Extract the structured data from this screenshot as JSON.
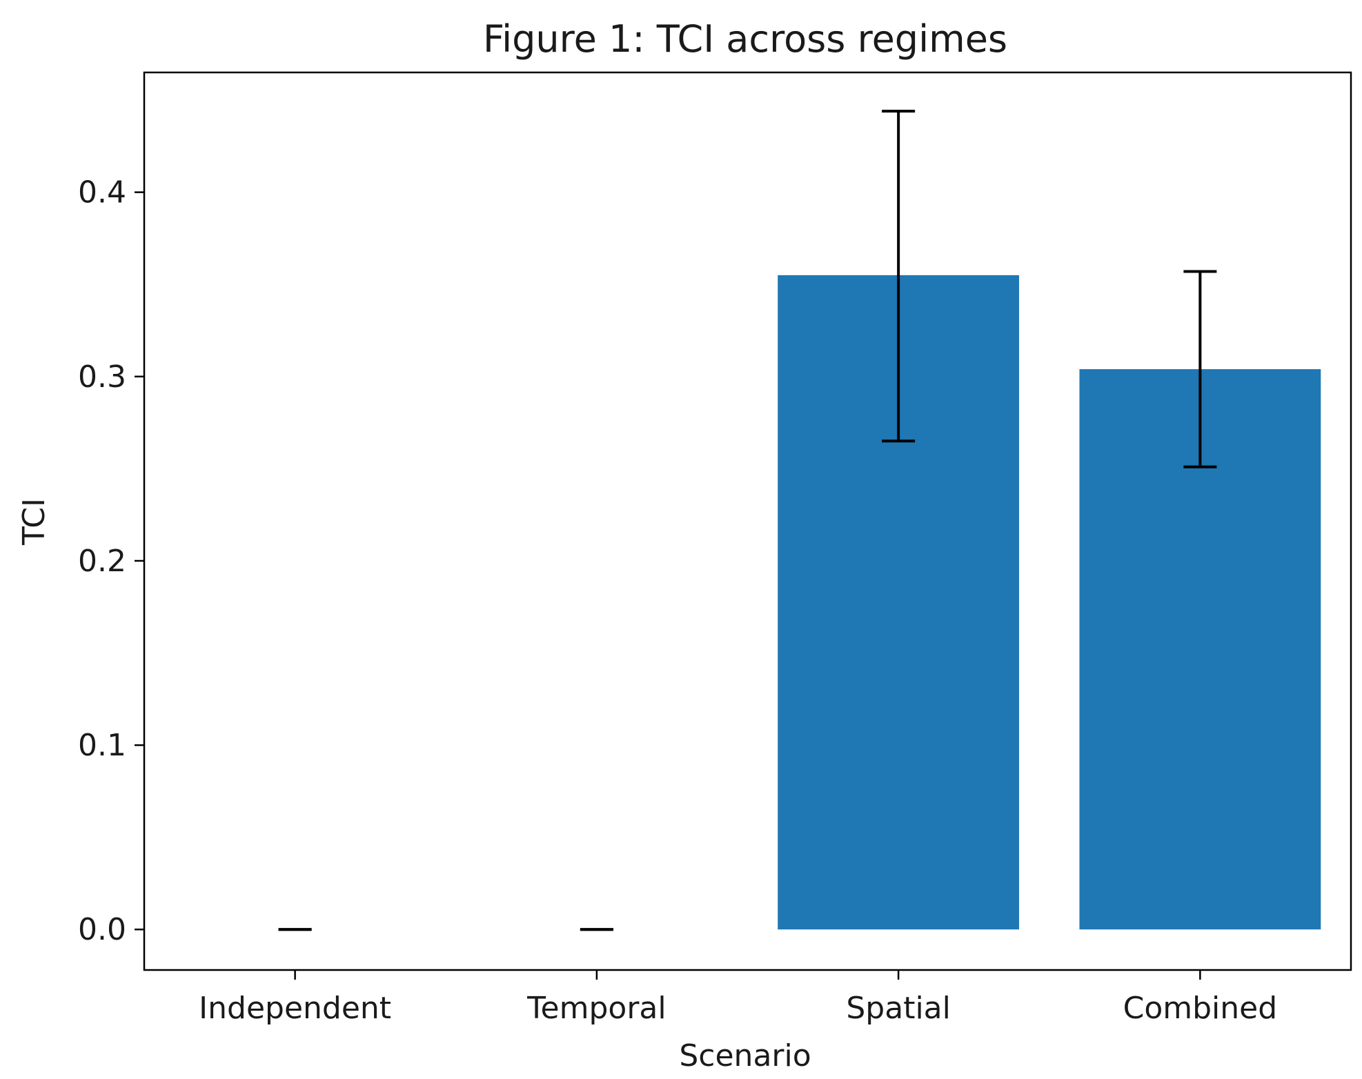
{
  "chart_data": {
    "type": "bar",
    "title": "Figure 1: TCI across regimes",
    "xlabel": "Scenario",
    "ylabel": "TCI",
    "categories": [
      "Independent",
      "Temporal",
      "Spatial",
      "Combined"
    ],
    "values": [
      0.0,
      0.0,
      0.355,
      0.304
    ],
    "error_low": [
      0.0,
      0.0,
      0.265,
      0.251
    ],
    "error_high": [
      0.0,
      0.0,
      0.444,
      0.357
    ],
    "ylim": [
      -0.022,
      0.465
    ],
    "yticks": [
      0.0,
      0.1,
      0.2,
      0.3,
      0.4
    ],
    "ytick_labels": [
      "0.0",
      "0.1",
      "0.2",
      "0.3",
      "0.4"
    ],
    "grid": false,
    "bar_color": "#1f77b4",
    "error_color": "#000000"
  }
}
